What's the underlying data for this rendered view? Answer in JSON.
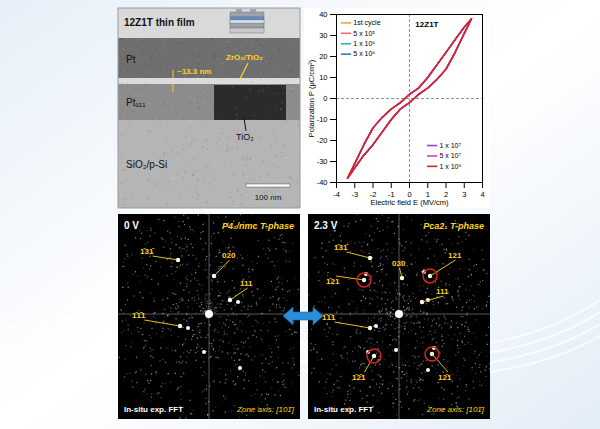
{
  "tem_panel": {
    "title": "12Z1T thin film",
    "labels": {
      "top_electrode": "Pt",
      "bottom_electrode": "Pt₁₁₁",
      "substrate": "SiO₂/p-Si",
      "thickness": "~13.3 nm",
      "film": "ZrO₂/TiO₂",
      "seed_layer": "TiO₂",
      "scale_bar": "100 nm"
    }
  },
  "chart_data": {
    "type": "line",
    "annotation": "12Z1T",
    "x_label": "Electric field E (MV/cm)",
    "y_label": "Polarization P (μC/cm²)",
    "xlim": [
      -4,
      4
    ],
    "xticks": [
      -4,
      -3,
      -2,
      -1,
      0,
      1,
      2,
      3,
      4
    ],
    "ylim": [
      -40,
      40
    ],
    "yticks": [
      -40,
      -30,
      -20,
      -10,
      0,
      10,
      20,
      30,
      40
    ],
    "legend": "inside",
    "x": [
      -3.4,
      -3,
      -2.5,
      -2,
      -1.5,
      -1,
      -0.5,
      0,
      0.5,
      1,
      1.5,
      2,
      2.5,
      3,
      3.4,
      3,
      2.5,
      2,
      1.5,
      1,
      0.5,
      0,
      -0.5,
      -1,
      -1.5,
      -2,
      -2.5,
      -3,
      -3.4
    ],
    "series": [
      {
        "name": "1st cycle",
        "color": "#f5a142",
        "values": [
          -38,
          -33,
          -27,
          -22,
          -16,
          -10,
          -5,
          -2,
          2,
          5,
          9,
          14,
          22,
          31,
          38,
          34,
          28,
          22,
          16,
          10,
          5,
          2,
          -2,
          -5,
          -9,
          -14,
          -22,
          -31,
          -38
        ]
      },
      {
        "name": "5 x 10⁵",
        "color": "#ef6b6b",
        "values": [
          -38,
          -33,
          -27,
          -22,
          -16,
          -10,
          -5,
          -2,
          2,
          5,
          9,
          14,
          22,
          31,
          38,
          34,
          28,
          22,
          16,
          10,
          5,
          2,
          -2,
          -5,
          -9,
          -14,
          -22,
          -31,
          -38
        ]
      },
      {
        "name": "1 x 10⁶",
        "color": "#26b5a5",
        "values": [
          -38,
          -33,
          -27,
          -22,
          -16,
          -10,
          -5,
          -2,
          2,
          5,
          9,
          14,
          22,
          31,
          38,
          34,
          28,
          22,
          16,
          10,
          5,
          2,
          -2,
          -5,
          -9,
          -14,
          -22,
          -31,
          -38
        ]
      },
      {
        "name": "5 x 10⁶",
        "color": "#2f7fc1",
        "values": [
          -38,
          -33,
          -27,
          -22,
          -16,
          -10,
          -5,
          -2,
          2,
          5,
          9,
          14,
          22,
          31,
          38,
          34,
          28,
          22,
          16,
          10,
          5,
          2,
          -2,
          -5,
          -9,
          -14,
          -22,
          -31,
          -38
        ]
      },
      {
        "name": "1 x 10⁷",
        "color": "#9b3fd6",
        "values": [
          -38,
          -33,
          -27,
          -22,
          -16,
          -10,
          -5,
          -2,
          2,
          5,
          9,
          14,
          22,
          31,
          38,
          34,
          28,
          22,
          16,
          10,
          5,
          2,
          -2,
          -5,
          -9,
          -14,
          -22,
          -31,
          -38
        ]
      },
      {
        "name": "5 x 10⁷",
        "color": "#d43fb5",
        "values": [
          -38,
          -33,
          -27,
          -22,
          -16,
          -10,
          -5,
          -2,
          2,
          5,
          9,
          14,
          22,
          31,
          38,
          34,
          28,
          22,
          16,
          10,
          5,
          2,
          -2,
          -5,
          -9,
          -14,
          -22,
          -31,
          -38
        ]
      },
      {
        "name": "1 x 10⁸",
        "color": "#e0201c",
        "values": [
          -38,
          -33,
          -27,
          -22,
          -16,
          -10,
          -5,
          -2,
          2,
          5,
          9,
          14,
          22,
          31,
          38,
          34,
          28,
          22,
          16,
          10,
          5,
          2,
          -2,
          -5,
          -9,
          -14,
          -22,
          -31,
          -38
        ]
      }
    ]
  },
  "fft_panels": [
    {
      "voltage": "0 V",
      "phase": "P4₂/nmc T-phase",
      "spots": [
        "1̄31̄",
        "020",
        "111",
        "1̄1̄1"
      ],
      "method": "In-situ exp. FFT",
      "zone_axis": "Zone axis: [101̄]"
    },
    {
      "voltage": "2.3 V",
      "phase": "Pca2₁ T-phase",
      "spots": [
        "1̄31̄",
        "020",
        "121",
        "111",
        "1̄21",
        "1̄1̄1",
        "1̄2̄1",
        "12̄1"
      ],
      "circled_spots": [
        "121",
        "1̄21",
        "1̄2̄1",
        "12̄1"
      ],
      "method": "In-situ exp. FFT",
      "zone_axis": "Zone axis: [101̄]"
    }
  ]
}
